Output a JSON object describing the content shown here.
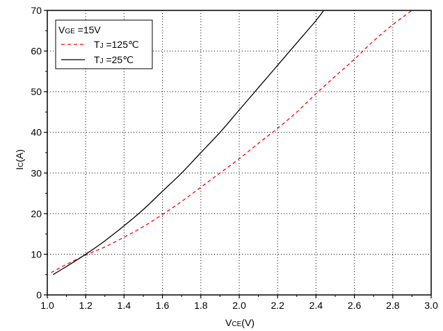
{
  "chart_data": {
    "type": "line",
    "xlabel": {
      "main": "V",
      "sub": "CE",
      "unit": "(V)"
    },
    "ylabel": {
      "main": "I",
      "sub": "C",
      "unit": "(A)"
    },
    "xlim": [
      1.0,
      3.0
    ],
    "ylim": [
      0,
      70
    ],
    "xticks": [
      1.0,
      1.2,
      1.4,
      1.6,
      1.8,
      2.0,
      2.2,
      2.4,
      2.6,
      2.8,
      3.0
    ],
    "xtick_labels": [
      "1.0",
      "1.2",
      "1.4",
      "1.6",
      "1.8",
      "2.0",
      "2.2",
      "2.4",
      "2.6",
      "2.8",
      "3.0"
    ],
    "yticks": [
      0,
      10,
      20,
      30,
      40,
      50,
      60,
      70
    ],
    "ytick_labels": [
      "0",
      "10",
      "20",
      "30",
      "40",
      "50",
      "60",
      "70"
    ],
    "grid": true,
    "legend": {
      "position": "top-left",
      "condition": {
        "main": "V",
        "sub": "GE",
        "rest": " =15V"
      },
      "entries": [
        {
          "main": "T",
          "sub": "J",
          "rest": " =125℃",
          "color": "#ff0000",
          "dash": "dashed"
        },
        {
          "main": "T",
          "sub": "J",
          "rest": " =25℃",
          "color": "#000000",
          "dash": "solid"
        }
      ]
    },
    "series": [
      {
        "name": "TJ =125℃",
        "color": "#ff0000",
        "style": "dashed",
        "x": [
          1.02,
          1.1,
          1.2,
          1.3,
          1.4,
          1.5,
          1.6,
          1.7,
          1.8,
          1.9,
          2.0,
          2.1,
          2.2,
          2.3,
          2.4,
          2.5,
          2.6,
          2.7,
          2.8,
          2.9
        ],
        "y": [
          5.5,
          7.5,
          9.8,
          11.8,
          14.2,
          16.8,
          19.8,
          23.0,
          26.5,
          30.0,
          33.5,
          37.3,
          41.0,
          45.0,
          49.5,
          53.8,
          58.0,
          62.5,
          66.5,
          70.0
        ]
      },
      {
        "name": "TJ =25℃",
        "color": "#000000",
        "style": "solid",
        "x": [
          1.03,
          1.1,
          1.2,
          1.3,
          1.4,
          1.5,
          1.6,
          1.7,
          1.8,
          1.9,
          2.0,
          2.1,
          2.2,
          2.3,
          2.4,
          2.44
        ],
        "y": [
          5.0,
          7.0,
          10.0,
          13.3,
          17.0,
          21.0,
          25.5,
          30.0,
          35.0,
          40.0,
          45.5,
          51.0,
          56.5,
          62.0,
          67.5,
          70.0
        ]
      }
    ]
  }
}
